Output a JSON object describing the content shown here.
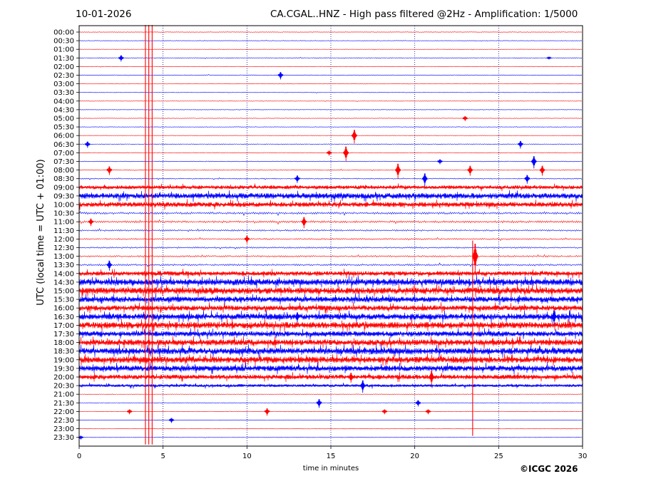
{
  "header": {
    "date": "10-01-2026",
    "title": "CA.CGAL..HNZ - High pass filtered @2Hz - Amplification: 1/5000"
  },
  "credit": "©ICGC 2026",
  "chart_data": {
    "type": "seismogram",
    "xlabel": "time in minutes",
    "ylabel": "UTC (local time = UTC + 01:00)",
    "xlim": [
      0,
      30
    ],
    "xticks": [
      0,
      5,
      10,
      15,
      20,
      25,
      30
    ],
    "grid": "vertical dotted lines every 5 minutes",
    "colors": {
      "red_trace": "#ff0000",
      "blue_trace": "#0000ff"
    },
    "rows": [
      {
        "label": "00:00",
        "color": "red",
        "noise": 0.3
      },
      {
        "label": "00:30",
        "color": "blue",
        "noise": 0.3
      },
      {
        "label": "01:00",
        "color": "red",
        "noise": 0.3
      },
      {
        "label": "01:30",
        "color": "blue",
        "noise": 0.4
      },
      {
        "label": "02:00",
        "color": "red",
        "noise": 0.3
      },
      {
        "label": "02:30",
        "color": "blue",
        "noise": 0.4
      },
      {
        "label": "03:00",
        "color": "red",
        "noise": 0.3
      },
      {
        "label": "03:30",
        "color": "blue",
        "noise": 0.3
      },
      {
        "label": "04:00",
        "color": "red",
        "noise": 0.3
      },
      {
        "label": "04:30",
        "color": "blue",
        "noise": 0.3
      },
      {
        "label": "05:00",
        "color": "red",
        "noise": 0.3
      },
      {
        "label": "05:30",
        "color": "blue",
        "noise": 0.3
      },
      {
        "label": "06:00",
        "color": "red",
        "noise": 0.3
      },
      {
        "label": "06:30",
        "color": "blue",
        "noise": 0.4
      },
      {
        "label": "07:00",
        "color": "red",
        "noise": 0.4
      },
      {
        "label": "07:30",
        "color": "blue",
        "noise": 0.4
      },
      {
        "label": "08:00",
        "color": "red",
        "noise": 0.5
      },
      {
        "label": "08:30",
        "color": "blue",
        "noise": 0.6
      },
      {
        "label": "09:00",
        "color": "red",
        "noise": 2.2
      },
      {
        "label": "09:30",
        "color": "blue",
        "noise": 3.2
      },
      {
        "label": "10:00",
        "color": "red",
        "noise": 2.8
      },
      {
        "label": "10:30",
        "color": "blue",
        "noise": 1.2
      },
      {
        "label": "11:00",
        "color": "red",
        "noise": 1.2
      },
      {
        "label": "11:30",
        "color": "blue",
        "noise": 0.9
      },
      {
        "label": "12:00",
        "color": "red",
        "noise": 0.8
      },
      {
        "label": "12:30",
        "color": "blue",
        "noise": 0.8
      },
      {
        "label": "13:00",
        "color": "red",
        "noise": 0.9
      },
      {
        "label": "13:30",
        "color": "blue",
        "noise": 1.0
      },
      {
        "label": "14:00",
        "color": "red",
        "noise": 2.6
      },
      {
        "label": "14:30",
        "color": "blue",
        "noise": 3.6
      },
      {
        "label": "15:00",
        "color": "red",
        "noise": 3.6
      },
      {
        "label": "15:30",
        "color": "blue",
        "noise": 3.2
      },
      {
        "label": "16:00",
        "color": "red",
        "noise": 3.0
      },
      {
        "label": "16:30",
        "color": "blue",
        "noise": 3.4
      },
      {
        "label": "17:00",
        "color": "red",
        "noise": 3.6
      },
      {
        "label": "17:30",
        "color": "blue",
        "noise": 3.0
      },
      {
        "label": "18:00",
        "color": "red",
        "noise": 3.4
      },
      {
        "label": "18:30",
        "color": "blue",
        "noise": 3.6
      },
      {
        "label": "19:00",
        "color": "red",
        "noise": 3.6
      },
      {
        "label": "19:30",
        "color": "blue",
        "noise": 3.2
      },
      {
        "label": "20:00",
        "color": "red",
        "noise": 2.6
      },
      {
        "label": "20:30",
        "color": "blue",
        "noise": 1.6
      },
      {
        "label": "21:00",
        "color": "red",
        "noise": 0.3
      },
      {
        "label": "21:30",
        "color": "blue",
        "noise": 0.3
      },
      {
        "label": "22:00",
        "color": "red",
        "noise": 0.3
      },
      {
        "label": "22:30",
        "color": "blue",
        "noise": 0.3
      },
      {
        "label": "23:00",
        "color": "red",
        "noise": 0.3
      },
      {
        "label": "23:30",
        "color": "blue",
        "noise": 0.3
      }
    ],
    "events": [
      {
        "row": 3,
        "minute": 2.5,
        "amp": 5
      },
      {
        "row": 3,
        "minute": 28.0,
        "amp": 2
      },
      {
        "row": 5,
        "minute": 12.0,
        "amp": 6
      },
      {
        "row": 10,
        "minute": 23.0,
        "amp": 4
      },
      {
        "row": 12,
        "minute": 16.4,
        "amp": 11
      },
      {
        "row": 13,
        "minute": 0.5,
        "amp": 5
      },
      {
        "row": 13,
        "minute": 26.3,
        "amp": 6
      },
      {
        "row": 14,
        "minute": 15.9,
        "amp": 12
      },
      {
        "row": 14,
        "minute": 14.9,
        "amp": 4
      },
      {
        "row": 15,
        "minute": 27.1,
        "amp": 10
      },
      {
        "row": 15,
        "minute": 21.5,
        "amp": 4
      },
      {
        "row": 16,
        "minute": 19.0,
        "amp": 12
      },
      {
        "row": 16,
        "minute": 1.8,
        "amp": 7
      },
      {
        "row": 16,
        "minute": 23.3,
        "amp": 8
      },
      {
        "row": 16,
        "minute": 27.6,
        "amp": 8
      },
      {
        "row": 17,
        "minute": 20.6,
        "amp": 10
      },
      {
        "row": 17,
        "minute": 13.0,
        "amp": 6
      },
      {
        "row": 17,
        "minute": 26.7,
        "amp": 7
      },
      {
        "row": 22,
        "minute": 13.4,
        "amp": 9
      },
      {
        "row": 22,
        "minute": 0.7,
        "amp": 6
      },
      {
        "row": 24,
        "minute": 10.0,
        "amp": 6
      },
      {
        "row": 26,
        "minute": 23.6,
        "amp": 24
      },
      {
        "row": 27,
        "minute": 1.8,
        "amp": 8
      },
      {
        "row": 33,
        "minute": 28.3,
        "amp": 12
      },
      {
        "row": 33,
        "minute": 13.0,
        "amp": 8
      },
      {
        "row": 40,
        "minute": 16.2,
        "amp": 8
      },
      {
        "row": 40,
        "minute": 21.0,
        "amp": 12
      },
      {
        "row": 41,
        "minute": 16.9,
        "amp": 10
      },
      {
        "row": 43,
        "minute": 14.3,
        "amp": 7
      },
      {
        "row": 43,
        "minute": 20.2,
        "amp": 5
      },
      {
        "row": 44,
        "minute": 3.0,
        "amp": 4
      },
      {
        "row": 44,
        "minute": 11.2,
        "amp": 6
      },
      {
        "row": 44,
        "minute": 18.2,
        "amp": 4
      },
      {
        "row": 44,
        "minute": 20.8,
        "amp": 4
      },
      {
        "row": 45,
        "minute": 5.5,
        "amp": 4
      },
      {
        "row": 47,
        "minute": 0.1,
        "amp": 3
      }
    ],
    "full_spikes": [
      {
        "minute": 3.95,
        "from_row": 0,
        "to_row": 47
      },
      {
        "minute": 4.15,
        "from_row": 0,
        "to_row": 47
      },
      {
        "minute": 4.35,
        "from_row": 0,
        "to_row": 47
      },
      {
        "minute": 23.45,
        "from_row": 25,
        "to_row": 46
      }
    ]
  }
}
